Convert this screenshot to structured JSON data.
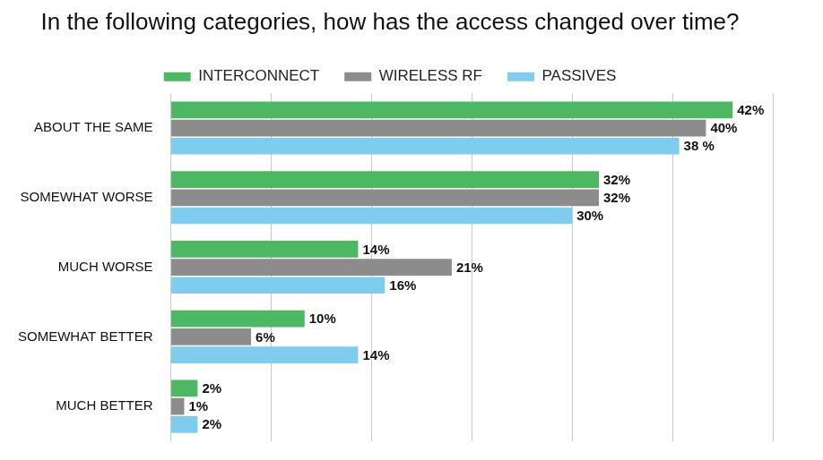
{
  "chart_data": {
    "type": "bar",
    "title": "In the following categories, how has the access changed over time?",
    "orientation": "horizontal",
    "categories": [
      "ABOUT THE SAME",
      "SOMEWHAT WORSE",
      "MUCH WORSE",
      "SOMEWHAT BETTER",
      "MUCH BETTER"
    ],
    "series": [
      {
        "name": "INTERCONNECT",
        "color": "#4cb862",
        "values": [
          42,
          32,
          14,
          10,
          2
        ],
        "value_labels": [
          "42%",
          "32%",
          "14%",
          "10%",
          "2%"
        ]
      },
      {
        "name": "WIRELESS RF",
        "color": "#8c8c8c",
        "values": [
          40,
          32,
          21,
          6,
          1
        ],
        "value_labels": [
          "40%",
          "32%",
          "21%",
          "6%",
          "1%"
        ]
      },
      {
        "name": "PASSIVES",
        "color": "#7fcdee",
        "values": [
          38,
          30,
          16,
          14,
          2
        ],
        "value_labels": [
          "38 %",
          "30%",
          "16%",
          "14%",
          "2%"
        ]
      }
    ],
    "xlim": [
      0,
      45
    ],
    "xticks": [
      0,
      7.5,
      15,
      22.5,
      30,
      37.5,
      45
    ],
    "grid": true,
    "legend": "top",
    "data_labels": true,
    "tick_labels": "y"
  }
}
